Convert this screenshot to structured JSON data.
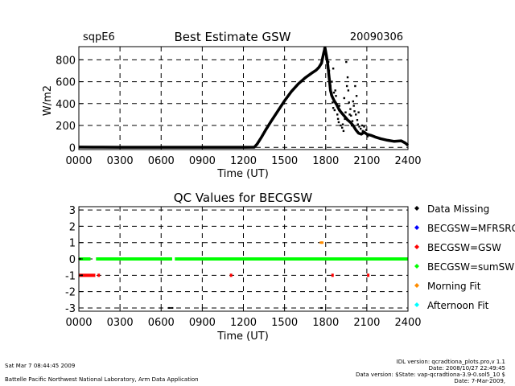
{
  "header": {
    "site": "sqpE6",
    "title": "Best Estimate GSW",
    "date": "20090306"
  },
  "footer": {
    "timestamp": "Sat Mar  7 08:44:45 2009",
    "lab": "Battelle Pacific Northwest National Laboratory, Arm Data Application",
    "idl_version": "IDL version: qcradtiona_plots.pro,v 1.1",
    "idl_date": "Date: 2008/10/27 22:49:45",
    "data_version": "Data version: $State: vap-qcradtiona-3.9-0.sol5_10 $",
    "data_date": "Date: 7-Mar-2009,"
  },
  "chart_data": [
    {
      "type": "scatter",
      "title": "Best Estimate GSW",
      "xlabel": "Time (UT)",
      "ylabel": "W/m2",
      "xlim": [
        0,
        24
      ],
      "ylim": [
        -20,
        920
      ],
      "x_tick_labels": [
        "0000",
        "0300",
        "0600",
        "0900",
        "1200",
        "1500",
        "1800",
        "2100",
        "2400"
      ],
      "x_ticks": [
        0,
        3,
        6,
        9,
        12,
        15,
        18,
        21,
        24
      ],
      "y_ticks": [
        0,
        200,
        400,
        600,
        800
      ],
      "grid": true,
      "series_color": "#000000",
      "curve": [
        [
          0.0,
          3
        ],
        [
          1.0,
          2
        ],
        [
          3.0,
          1
        ],
        [
          6.0,
          1
        ],
        [
          9.0,
          1
        ],
        [
          12.0,
          1
        ],
        [
          12.8,
          2
        ],
        [
          13.0,
          30
        ],
        [
          13.3,
          90
        ],
        [
          13.6,
          155
        ],
        [
          14.0,
          235
        ],
        [
          14.5,
          330
        ],
        [
          15.0,
          425
        ],
        [
          15.5,
          510
        ],
        [
          16.0,
          580
        ],
        [
          16.5,
          635
        ],
        [
          17.0,
          680
        ],
        [
          17.3,
          705
        ],
        [
          17.5,
          730
        ],
        [
          17.7,
          770
        ],
        [
          17.85,
          860
        ],
        [
          17.95,
          910
        ],
        [
          18.05,
          840
        ],
        [
          18.15,
          760
        ],
        [
          18.25,
          640
        ],
        [
          18.35,
          520
        ],
        [
          18.45,
          470
        ],
        [
          18.6,
          430
        ],
        [
          18.8,
          390
        ],
        [
          19.0,
          340
        ],
        [
          19.2,
          310
        ],
        [
          19.4,
          280
        ],
        [
          19.6,
          250
        ],
        [
          19.8,
          230
        ],
        [
          20.0,
          200
        ],
        [
          20.2,
          160
        ],
        [
          20.4,
          130
        ],
        [
          20.6,
          120
        ],
        [
          20.8,
          140
        ],
        [
          21.0,
          120
        ],
        [
          21.3,
          110
        ],
        [
          21.6,
          95
        ],
        [
          22.0,
          80
        ],
        [
          22.5,
          65
        ],
        [
          23.0,
          55
        ],
        [
          23.5,
          60
        ],
        [
          23.8,
          40
        ],
        [
          24.0,
          20
        ]
      ],
      "scatter_points": [
        [
          17.9,
          905
        ],
        [
          18.0,
          870
        ],
        [
          18.1,
          800
        ],
        [
          18.2,
          780
        ],
        [
          18.25,
          700
        ],
        [
          18.3,
          620
        ],
        [
          18.35,
          560
        ],
        [
          18.4,
          480
        ],
        [
          18.5,
          410
        ],
        [
          18.55,
          360
        ],
        [
          18.65,
          340
        ],
        [
          18.7,
          520
        ],
        [
          18.75,
          470
        ],
        [
          18.85,
          300
        ],
        [
          18.9,
          260
        ],
        [
          18.95,
          230
        ],
        [
          19.0,
          380
        ],
        [
          19.05,
          340
        ],
        [
          19.1,
          200
        ],
        [
          19.2,
          180
        ],
        [
          19.25,
          210
        ],
        [
          19.3,
          150
        ],
        [
          19.4,
          260
        ],
        [
          19.45,
          320
        ],
        [
          19.5,
          780
        ],
        [
          19.6,
          640
        ],
        [
          19.65,
          520
        ],
        [
          19.7,
          410
        ],
        [
          19.8,
          350
        ],
        [
          19.85,
          290
        ],
        [
          19.9,
          200
        ],
        [
          19.95,
          240
        ],
        [
          20.0,
          420
        ],
        [
          20.05,
          380
        ],
        [
          20.1,
          330
        ],
        [
          20.2,
          300
        ],
        [
          20.3,
          250
        ],
        [
          20.35,
          210
        ],
        [
          20.45,
          190
        ],
        [
          20.55,
          170
        ],
        [
          20.65,
          200
        ],
        [
          20.7,
          150
        ],
        [
          20.8,
          190
        ],
        [
          20.85,
          130
        ],
        [
          20.95,
          160
        ],
        [
          21.05,
          100
        ],
        [
          18.45,
          600
        ],
        [
          18.55,
          720
        ],
        [
          18.6,
          500
        ],
        [
          19.35,
          450
        ],
        [
          19.55,
          560
        ],
        [
          19.75,
          300
        ],
        [
          20.15,
          560
        ],
        [
          20.25,
          470
        ],
        [
          20.4,
          320
        ]
      ]
    },
    {
      "type": "scatter",
      "title": "QC Values for BECGSW",
      "xlabel": "Time (UT)",
      "xlim": [
        0,
        24
      ],
      "ylim": [
        -3.2,
        3.2
      ],
      "x_tick_labels": [
        "0000",
        "0300",
        "0600",
        "0900",
        "1200",
        "1500",
        "1800",
        "2100",
        "2400"
      ],
      "x_ticks": [
        0,
        3,
        6,
        9,
        12,
        15,
        18,
        21,
        24
      ],
      "y_ticks": [
        -3,
        -2,
        -1,
        0,
        1,
        2,
        3
      ],
      "grid": true,
      "legend_position": "right",
      "legend": [
        {
          "label": "Data Missing",
          "color": "#000000"
        },
        {
          "label": "BECGSW=MFRSRG",
          "color": "#0000ff"
        },
        {
          "label": "BECGSW=GSW",
          "color": "#ff0000"
        },
        {
          "label": "BECGSW=sumSW",
          "color": "#00ff00"
        },
        {
          "label": "Morning Fit",
          "color": "#ff8c00"
        },
        {
          "label": "Afternoon Fit",
          "color": "#00ffff"
        }
      ],
      "sumSW_segments": [
        [
          0.0,
          0.85
        ],
        [
          1.25,
          6.8
        ],
        [
          7.0,
          24.0
        ]
      ],
      "sumSW_value": 0,
      "gsw_segment": [
        0.0,
        1.2
      ],
      "gsw_value": -1,
      "gsw_points": [
        1.45,
        11.1,
        18.5,
        21.1
      ],
      "morning_fit_points": [
        17.65,
        17.75
      ],
      "morning_fit_value": 1,
      "missing_points": [
        [
          6.6,
          -3
        ],
        [
          6.8,
          -3
        ],
        [
          17.7,
          -3
        ],
        [
          0.05,
          0
        ],
        [
          0.2,
          -1
        ]
      ]
    }
  ]
}
